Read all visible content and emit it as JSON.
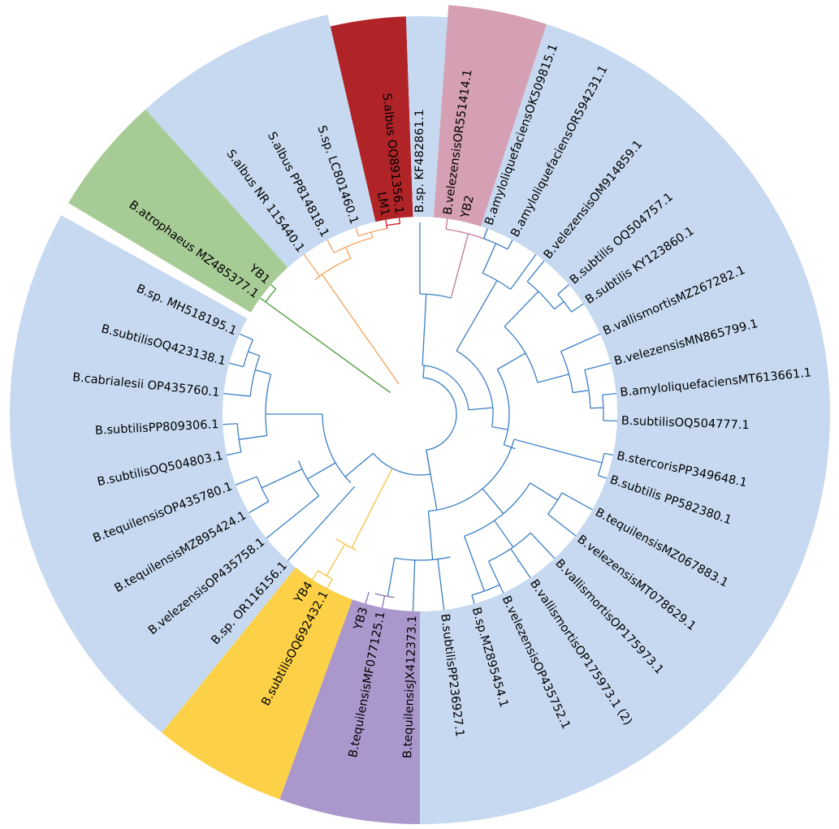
{
  "clade_colors": {
    "bacillus": "#c6d9f0",
    "red": "#b02428",
    "pink": "#d59fb4",
    "green": "#a7cb95",
    "yellow": "#fdd147",
    "purple": "#aa98cc",
    "branch_blue": "#3b7fc4",
    "branch_orange": "#f5a25d",
    "branch_red": "#d7191c",
    "branch_green": "#4a9a3a",
    "branch_yellow": "#f5c242",
    "branch_purple": "#8a6fb0",
    "branch_pink": "#c07898"
  },
  "leaves": [
    {
      "label": "B.sp. KF482861.1",
      "group": "bacillus",
      "angle": 0
    },
    {
      "label": "YB2",
      "group": "pink",
      "angle": 13
    },
    {
      "label": "B.velezensisOR551414.1",
      "group": "pink",
      "angle": 8
    },
    {
      "label": "B.amyloliquefaciensOK509815.1",
      "group": "bacillus",
      "angle": 20
    },
    {
      "label": "B.amyloliquefaciensOR594231.1",
      "group": "bacillus",
      "angle": 28
    },
    {
      "label": "B.velezensisOM914859.1",
      "group": "bacillus",
      "angle": 39
    },
    {
      "label": "B.subtilis OQ504757.1",
      "group": "bacillus",
      "angle": 49
    },
    {
      "label": "B.subtilis KY123860.1",
      "group": "bacillus",
      "angle": 56
    },
    {
      "label": "B.vallismortisMZ267282.1",
      "group": "bacillus",
      "angle": 66
    },
    {
      "label": "B.velezensisMN865799.1",
      "group": "bacillus",
      "angle": 75
    },
    {
      "label": "B.amyloliquefaciensMT613661.1",
      "group": "bacillus",
      "angle": 84
    },
    {
      "label": "B.subtilisOQ504777.1",
      "group": "bacillus",
      "angle": 92
    },
    {
      "label": "B.stercorisPP349648.1",
      "group": "bacillus",
      "angle": 102
    },
    {
      "label": "B.subtilis PP582380.1",
      "group": "bacillus",
      "angle": 109
    },
    {
      "label": "B.tequilensisMZ067883.1",
      "group": "bacillus",
      "angle": 119
    },
    {
      "label": "B.velezensisMT078629.1",
      "group": "bacillus",
      "angle": 128
    },
    {
      "label": "B.vallismortisOP175973.1",
      "group": "bacillus",
      "angle": 137
    },
    {
      "label": "B.vallismortisOP175973.1 (2)",
      "group": "bacillus",
      "angle": 146
    },
    {
      "label": "B.velezensisOP435752.1",
      "group": "bacillus",
      "angle": 155
    },
    {
      "label": "B.sp.MZ895454.1",
      "group": "bacillus",
      "angle": 164
    },
    {
      "label": "B.subtilisPP236927.1",
      "group": "bacillus",
      "angle": 173
    },
    {
      "label": "B.tequilensisJX412373.1",
      "group": "bacillus",
      "angle": 182
    },
    {
      "label": "B.tequilensisMF077125.1",
      "group": "purple",
      "angle": 191
    },
    {
      "label": "YB3",
      "group": "purple",
      "angle": 196
    },
    {
      "label": "B.subtilisOQ692432.1",
      "group": "yellow",
      "angle": 208
    },
    {
      "label": "YB4",
      "group": "yellow",
      "angle": 213
    },
    {
      "label": "B.sp. OR116156.1",
      "group": "bacillus",
      "angle": 222
    },
    {
      "label": "B.velezensisOP435758.1",
      "group": "bacillus",
      "angle": 231
    },
    {
      "label": "B.tequilensisMZ895424.1",
      "group": "bacillus",
      "angle": 240
    },
    {
      "label": "B.tequilensisOP435780.1",
      "group": "bacillus",
      "angle": 249
    },
    {
      "label": "B.subtilisOQ504803.1",
      "group": "bacillus",
      "angle": 258
    },
    {
      "label": "B.subtilisPP809306.1",
      "group": "bacillus",
      "angle": 267
    },
    {
      "label": "B.cabrialesii OP435760.1",
      "group": "bacillus",
      "angle": 276
    },
    {
      "label": "B.subtilisOQ423138.1",
      "group": "bacillus",
      "angle": 285
    },
    {
      "label": "B.sp. MH518195.1",
      "group": "bacillus",
      "angle": 294
    },
    {
      "label": "B.atrophaeus MZ485377.1",
      "group": "green",
      "angle": 306
    },
    {
      "label": "YB1",
      "group": "green",
      "angle": 311
    },
    {
      "label": "S.albus NR 115440.1",
      "group": "bacillus",
      "angle": 324
    },
    {
      "label": "S.albus PP814818.1",
      "group": "bacillus",
      "angle": 332
    },
    {
      "label": "S.sp. LC801460.1",
      "group": "bacillus",
      "angle": 341
    },
    {
      "label": "LM1",
      "group": "red",
      "angle": 350
    },
    {
      "label": "S.albus OQ891356.1",
      "group": "red",
      "angle": 354
    }
  ]
}
